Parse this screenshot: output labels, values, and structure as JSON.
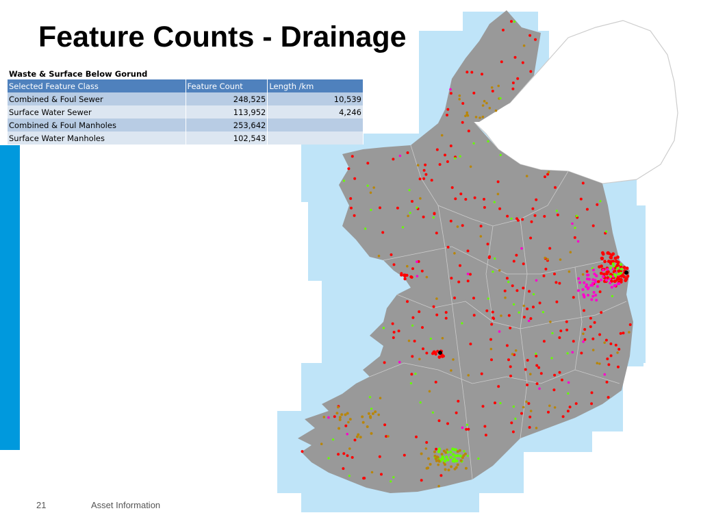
{
  "slide": {
    "title": "Feature Counts - Drainage",
    "page_number": "21",
    "footer": "Asset Information",
    "accent_color": "#0099dd"
  },
  "table": {
    "caption": "Waste & Surface Below Gorund",
    "header_color": "#4f81bd",
    "row_color_odd": "#b8cce4",
    "row_color_even": "#dce6f1",
    "columns": [
      "Selected Feature Class",
      "Feature Count",
      "Length /km"
    ],
    "rows": [
      [
        "Combined & Foul Sewer",
        "248,525",
        "10,539"
      ],
      [
        "Surface Water Sewer",
        "113,952",
        "4,246"
      ],
      [
        "Combined & Foul Manholes",
        "253,642",
        ""
      ],
      [
        "Surface Water Manholes",
        "102,543",
        ""
      ]
    ]
  },
  "map": {
    "colors": {
      "coverage": "#bfe4f8",
      "land": "#999999",
      "northern_ireland": "#ffffff",
      "border": "#cccccc",
      "combined_foul": "#ff0000",
      "surface_water": "#ff00cc",
      "manholes_green": "#66ff00",
      "manholes_brown": "#b8860b",
      "other": "#000000"
    }
  }
}
